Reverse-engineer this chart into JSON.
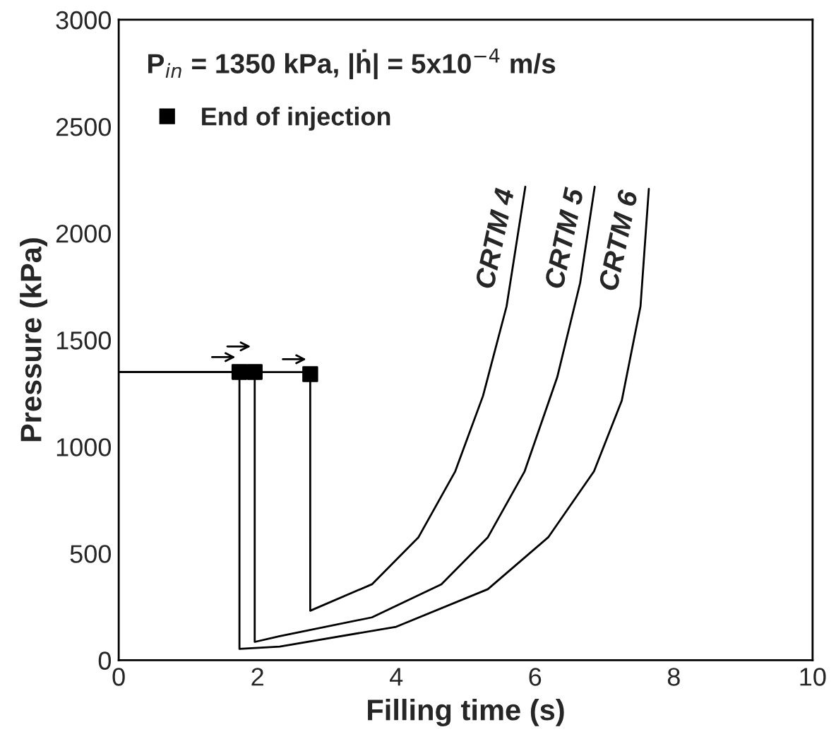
{
  "chart_data": {
    "type": "line",
    "xlabel": "Filling time (s)",
    "ylabel": "Pressure (kPa)",
    "xlim": [
      0,
      10
    ],
    "xticks": [
      0,
      2,
      4,
      6,
      8,
      10
    ],
    "ylim": [
      0,
      3000
    ],
    "yticks": [
      0,
      500,
      1000,
      1500,
      2000,
      2500,
      3000
    ],
    "grid": false,
    "legend": "top left",
    "marker": "none",
    "line_style": "solid",
    "annotations": [
      "P$_{in}$ = 1350 kPa, |ḣ| = 5x10$^{−4}$ m/s"
    ],
    "series": [
      {
        "name": "CRTM 4",
        "color": "#000000",
        "x": [
          0,
          2.76,
          2.76,
          3.65,
          4.32,
          4.85,
          5.25,
          5.59,
          5.86
        ],
        "values": [
          1350,
          1350,
          232,
          356,
          576,
          885,
          1238,
          1658,
          2218
        ]
      },
      {
        "name": "CRTM 5",
        "color": "#000000",
        "x": [
          0,
          1.96,
          1.96,
          2.32,
          3.65,
          4.65,
          5.32,
          5.85,
          6.32,
          6.65,
          6.86
        ],
        "values": [
          1350,
          1350,
          86,
          113,
          201,
          356,
          576,
          885,
          1326,
          1767,
          2218
        ]
      },
      {
        "name": "CRTM 6",
        "color": "#000000",
        "x": [
          0,
          1.74,
          1.74,
          2.32,
          4.0,
          5.32,
          6.19,
          6.85,
          7.25,
          7.52,
          7.64
        ],
        "values": [
          1350,
          1350,
          53,
          64,
          157,
          333,
          576,
          885,
          1216,
          1658,
          2208
        ]
      },
      {
        "name": "End of injection",
        "type": "scatter",
        "marker": "square",
        "color": "#000000",
        "x": [
          1.74,
          1.96,
          2.76
        ],
        "values": [
          1350,
          1350,
          1340
        ]
      }
    ]
  }
}
